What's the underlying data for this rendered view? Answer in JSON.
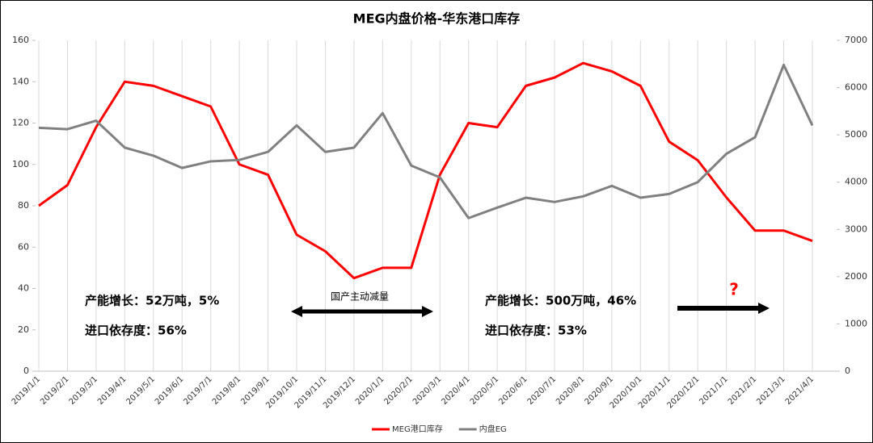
{
  "chart_data": {
    "type": "line",
    "title": "MEG内盘价格-华东港口库存",
    "categories": [
      "2019/1/1",
      "2019/2/1",
      "2019/3/1",
      "2019/4/1",
      "2019/5/1",
      "2019/6/1",
      "2019/7/1",
      "2019/8/1",
      "2019/9/1",
      "2019/10/1",
      "2019/11/1",
      "2019/12/1",
      "2020/1/1",
      "2020/2/1",
      "2020/3/1",
      "2020/4/1",
      "2020/5/1",
      "2020/6/1",
      "2020/7/1",
      "2020/8/1",
      "2020/9/1",
      "2020/10/1",
      "2020/11/1",
      "2020/12/1",
      "2021/1/1",
      "2021/2/1",
      "2021/3/1",
      "2021/4/1"
    ],
    "series": [
      {
        "name": "MEG港口库存",
        "color": "#ff0000",
        "values": [
          80,
          90,
          118,
          140,
          138,
          133,
          128,
          100,
          95,
          66,
          58,
          45,
          50,
          50,
          95,
          120,
          118,
          138,
          142,
          149,
          145,
          138,
          111,
          102,
          84,
          68,
          68,
          63
        ]
      },
      {
        "name": "内盘EG",
        "color": "#808080",
        "axis": "y2",
        "values": [
          5150,
          5120,
          5300,
          4730,
          4560,
          4300,
          4440,
          4470,
          4640,
          5200,
          4640,
          4730,
          5460,
          4350,
          4100,
          3240,
          3460,
          3670,
          3580,
          3700,
          3920,
          3670,
          3750,
          4000,
          4600,
          4950,
          6480,
          5200
        ]
      }
    ],
    "ylim": [
      0,
      160
    ],
    "yticks": [
      0,
      20,
      40,
      60,
      80,
      100,
      120,
      140,
      160
    ],
    "y2lim": [
      0,
      7000
    ],
    "y2ticks": [
      0,
      1000,
      2000,
      3000,
      4000,
      5000,
      6000,
      7000
    ],
    "grid": true,
    "annotations": [
      "产能增长：52万吨，5%",
      "进口依存度：56%",
      "国产主动减量",
      "产能增长：500万吨，46%",
      "进口依存度：53%",
      "?"
    ]
  }
}
